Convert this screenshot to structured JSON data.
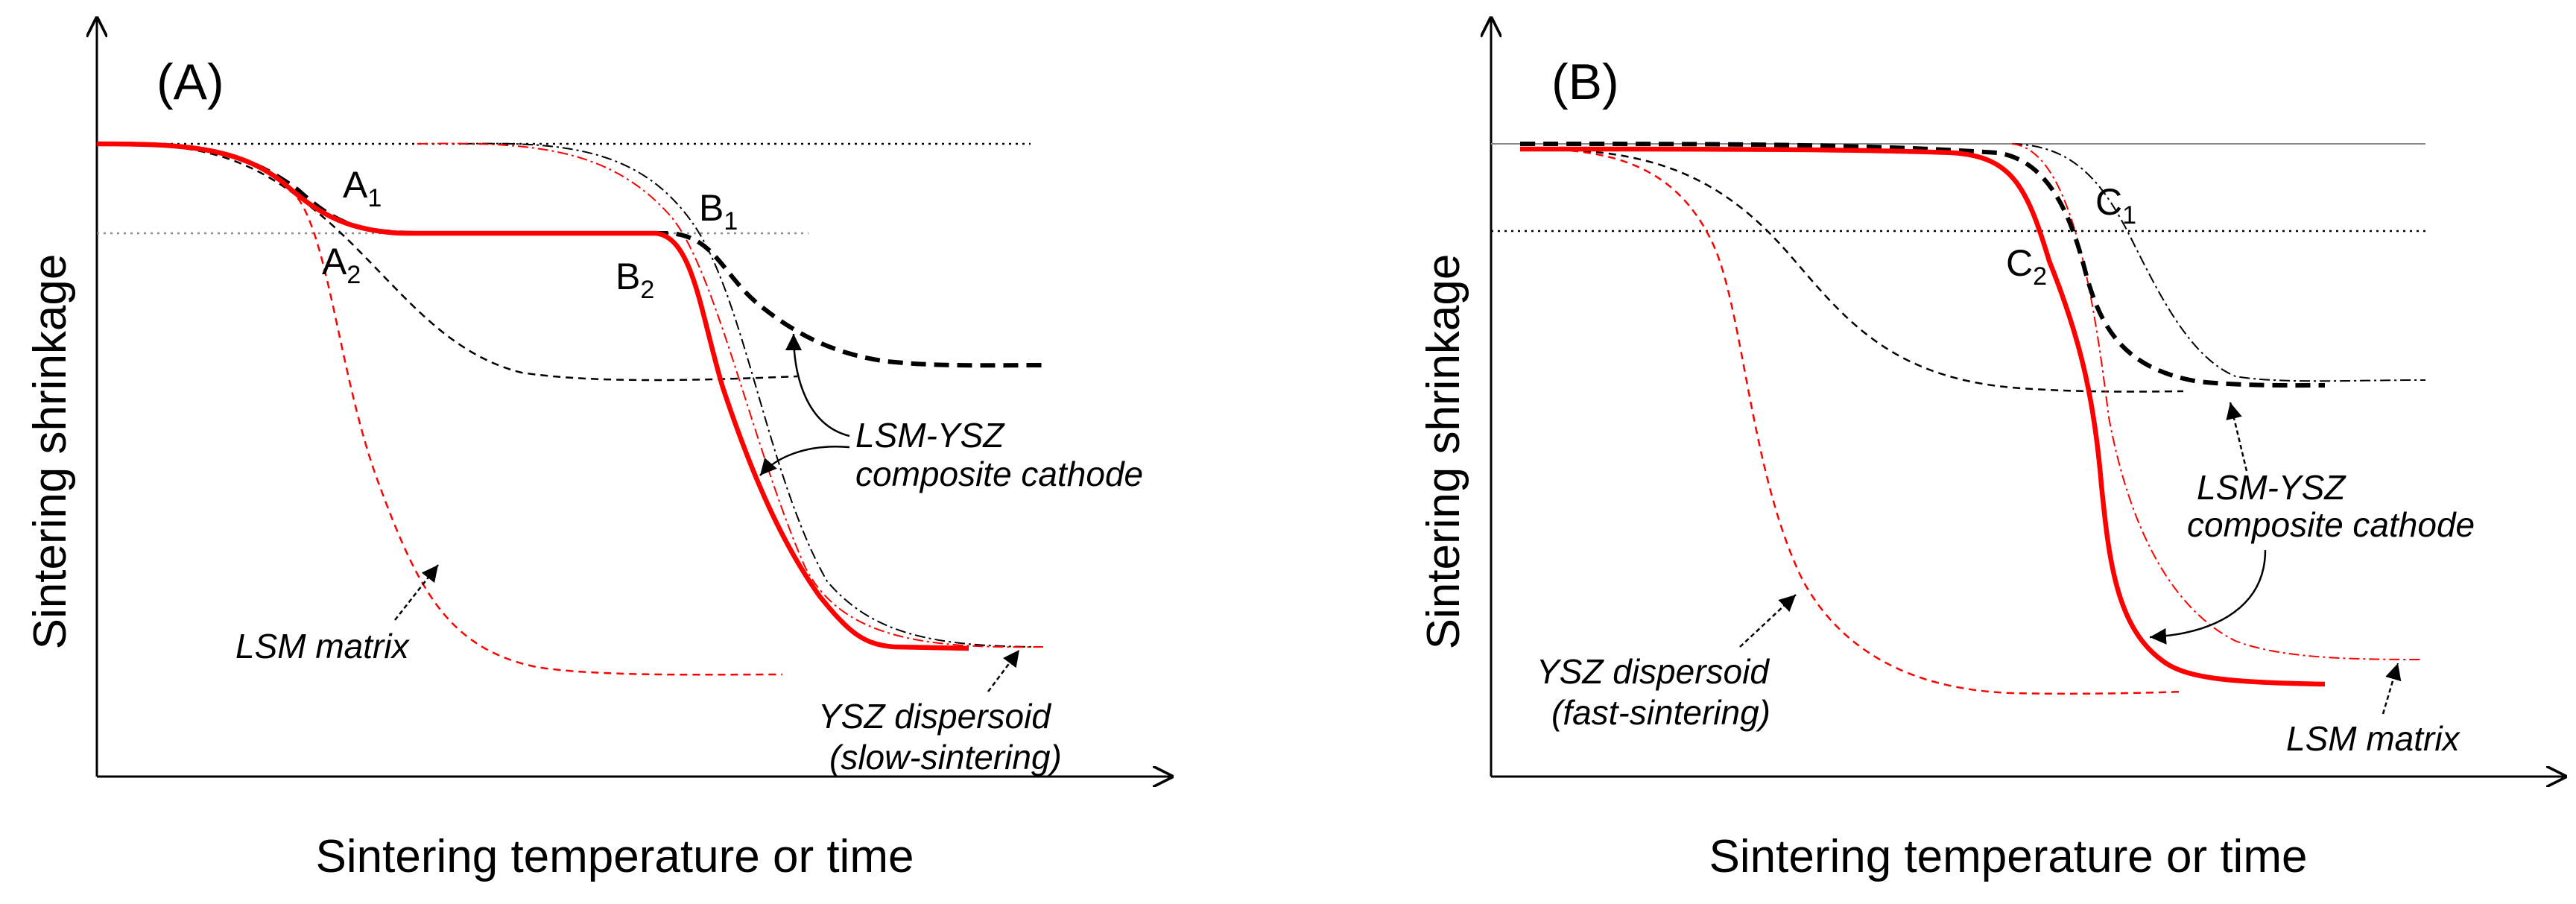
{
  "colors": {
    "axis": "#000000",
    "red": "#ff0000",
    "black": "#000000",
    "grey": "#888888"
  },
  "panels": [
    {
      "id": "A",
      "label": "(A)",
      "ylabel": "Sintering shrinkage",
      "xlabel": "Sintering temperature or time",
      "points": {
        "A1": {
          "letter": "A",
          "sub": "1"
        },
        "A2": {
          "letter": "A",
          "sub": "2"
        },
        "B1": {
          "letter": "B",
          "sub": "1"
        },
        "B2": {
          "letter": "B",
          "sub": "2"
        }
      },
      "annotations": {
        "composite": [
          "LSM-YSZ",
          "composite cathode"
        ],
        "matrix": [
          "LSM matrix"
        ],
        "dispersoid": [
          "YSZ dispersoid",
          "(slow-sintering)"
        ]
      }
    },
    {
      "id": "B",
      "label": "(B)",
      "ylabel": "Sintering shrinkage",
      "xlabel": "Sintering temperature or time",
      "points": {
        "C1": {
          "letter": "C",
          "sub": "1"
        },
        "C2": {
          "letter": "C",
          "sub": "2"
        }
      },
      "annotations": {
        "composite": [
          "LSM-YSZ",
          "composite cathode"
        ],
        "dispersoid": [
          "YSZ dispersoid",
          "(fast-sintering)"
        ],
        "matrix": [
          "LSM matrix"
        ]
      }
    }
  ]
}
